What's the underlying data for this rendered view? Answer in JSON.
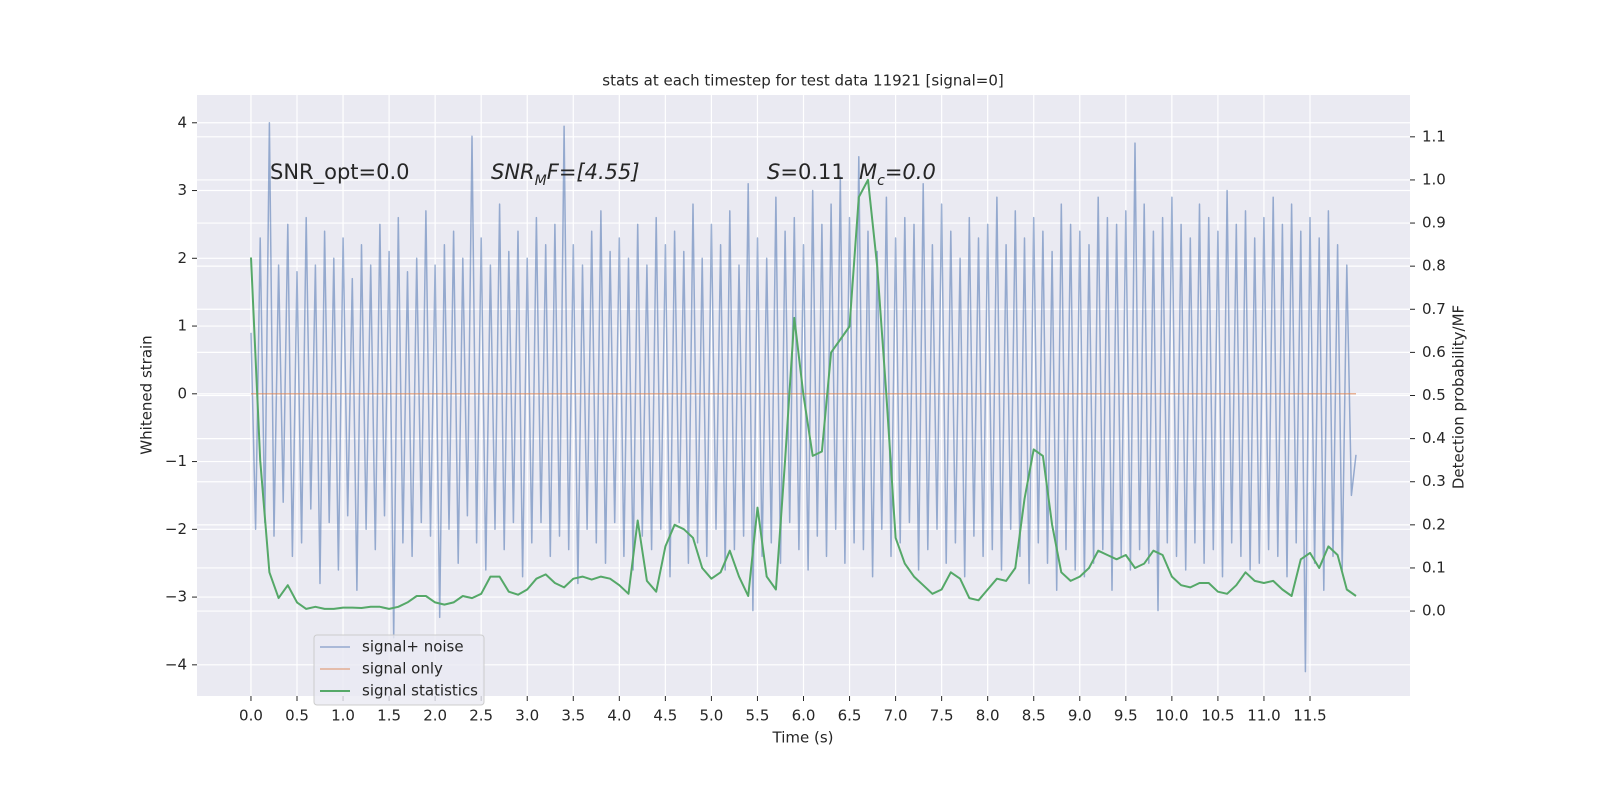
{
  "chart_data": {
    "type": "line",
    "title": "stats at each timestep for test data 11921 [signal=0]",
    "xlabel": "Time (s)",
    "ylabel": "Whitened strain",
    "y2label": "Detection probability/MF",
    "annotations": [
      "SNR_opt=0.0",
      "SNRMF=[4.55]",
      "S=0.11",
      "Mc=0.0"
    ],
    "xlim": [
      -0.586,
      12.586
    ],
    "ylim": [
      -4.46,
      4.41
    ],
    "y2lim": [
      -0.197,
      1.197
    ],
    "xticks": [
      {
        "value": 0,
        "label": "0.0"
      },
      0.5,
      {
        "value": 1,
        "label": "1.0"
      },
      1.5,
      {
        "value": 2,
        "label": "2.0"
      },
      2.5,
      {
        "value": 3,
        "label": "3.0"
      },
      3.5,
      {
        "value": 4,
        "label": "4.0"
      },
      4.5,
      {
        "value": 5,
        "label": "5.0"
      },
      5.5,
      {
        "value": 6,
        "label": "6.0"
      },
      6.5,
      {
        "value": 7,
        "label": "7.0"
      },
      7.5,
      {
        "value": 8,
        "label": "8.0"
      },
      8.5,
      {
        "value": 9,
        "label": "9.0"
      },
      9.5,
      {
        "value": 10,
        "label": "10.0"
      },
      10.5,
      {
        "value": 11,
        "label": "11.0"
      },
      11.5
    ],
    "yticks": [
      {
        "value": -4,
        "label": "−4"
      },
      {
        "value": -3,
        "label": "−3"
      },
      {
        "value": -2,
        "label": "−2"
      },
      {
        "value": -1,
        "label": "−1"
      },
      0,
      1,
      2,
      3,
      4
    ],
    "y2ticks": [
      {
        "value": 0,
        "label": "0.0"
      },
      0.1,
      0.2,
      0.3,
      0.4,
      0.5,
      0.6,
      0.7,
      0.8,
      0.9,
      {
        "value": 1,
        "label": "1.0"
      },
      1.1
    ],
    "grid": true,
    "legend": "lower left",
    "series": [
      {
        "name": "signal+ noise",
        "color": "#4c72b0",
        "x": [
          0,
          0.05,
          0.1,
          0.15,
          0.2,
          0.25,
          0.3,
          0.35,
          0.4,
          0.45,
          0.5,
          0.55,
          0.6,
          0.65,
          0.7,
          0.75,
          0.8,
          0.85,
          0.9,
          0.95,
          1,
          1.05,
          1.1,
          1.15,
          1.2,
          1.25,
          1.3,
          1.35,
          1.4,
          1.45,
          1.5,
          1.55,
          1.6,
          1.65,
          1.7,
          1.75,
          1.8,
          1.85,
          1.9,
          1.95,
          2,
          2.05,
          2.1,
          2.15,
          2.2,
          2.25,
          2.3,
          2.35,
          2.4,
          2.45,
          2.5,
          2.55,
          2.6,
          2.65,
          2.7,
          2.75,
          2.8,
          2.85,
          2.9,
          2.95,
          3,
          3.05,
          3.1,
          3.15,
          3.2,
          3.25,
          3.3,
          3.35,
          3.4,
          3.45,
          3.5,
          3.55,
          3.6,
          3.65,
          3.7,
          3.75,
          3.8,
          3.85,
          3.9,
          3.95,
          4,
          4.05,
          4.1,
          4.15,
          4.2,
          4.25,
          4.3,
          4.35,
          4.4,
          4.45,
          4.5,
          4.55,
          4.6,
          4.65,
          4.7,
          4.75,
          4.8,
          4.85,
          4.9,
          4.95,
          5,
          5.05,
          5.1,
          5.15,
          5.2,
          5.25,
          5.3,
          5.35,
          5.4,
          5.45,
          5.5,
          5.55,
          5.6,
          5.65,
          5.7,
          5.75,
          5.8,
          5.85,
          5.9,
          5.95,
          6,
          6.05,
          6.1,
          6.15,
          6.2,
          6.25,
          6.3,
          6.35,
          6.4,
          6.45,
          6.5,
          6.55,
          6.6,
          6.65,
          6.7,
          6.75,
          6.8,
          6.85,
          6.9,
          6.95,
          7,
          7.05,
          7.1,
          7.15,
          7.2,
          7.25,
          7.3,
          7.35,
          7.4,
          7.45,
          7.5,
          7.55,
          7.6,
          7.65,
          7.7,
          7.75,
          7.8,
          7.85,
          7.9,
          7.95,
          8,
          8.05,
          8.1,
          8.15,
          8.2,
          8.25,
          8.3,
          8.35,
          8.4,
          8.45,
          8.5,
          8.55,
          8.6,
          8.65,
          8.7,
          8.75,
          8.8,
          8.85,
          8.9,
          8.95,
          9,
          9.05,
          9.1,
          9.15,
          9.2,
          9.25,
          9.3,
          9.35,
          9.4,
          9.45,
          9.5,
          9.55,
          9.6,
          9.65,
          9.7,
          9.75,
          9.8,
          9.85,
          9.9,
          9.95,
          10,
          10.05,
          10.1,
          10.15,
          10.2,
          10.25,
          10.3,
          10.35,
          10.4,
          10.45,
          10.5,
          10.55,
          10.6,
          10.65,
          10.7,
          10.75,
          10.8,
          10.85,
          10.9,
          10.95,
          11,
          11.05,
          11.1,
          11.15,
          11.2,
          11.25,
          11.3,
          11.35,
          11.4,
          11.45,
          11.5,
          11.55,
          11.6,
          11.65,
          11.7,
          11.75,
          11.8,
          11.85,
          11.9,
          11.95,
          12
        ],
        "values": [
          0.9,
          -2.0,
          2.3,
          -1.9,
          4.0,
          -2.1,
          1.9,
          -1.6,
          2.5,
          -2.4,
          1.8,
          -2.2,
          2.6,
          -1.7,
          1.9,
          -2.8,
          2.4,
          -1.9,
          2.0,
          -2.6,
          2.3,
          -1.8,
          1.7,
          -2.9,
          2.2,
          -2.0,
          1.9,
          -2.3,
          2.5,
          -1.8,
          2.1,
          -3.6,
          2.6,
          -2.2,
          1.8,
          -2.4,
          2.0,
          -1.9,
          2.7,
          -2.1,
          1.9,
          -3.3,
          2.2,
          -2.0,
          2.4,
          -2.5,
          2.0,
          -1.8,
          3.8,
          -2.2,
          2.3,
          -2.6,
          1.9,
          -2.0,
          2.8,
          -2.3,
          2.1,
          -1.9,
          2.4,
          -2.7,
          2.0,
          -2.2,
          2.6,
          -1.9,
          2.2,
          -2.4,
          2.5,
          -2.1,
          3.95,
          -2.3,
          2.2,
          -2.8,
          1.9,
          -2.0,
          2.4,
          -2.2,
          2.7,
          -2.5,
          2.1,
          -1.9,
          2.3,
          -2.4,
          2.0,
          -2.6,
          2.5,
          -2.1,
          1.9,
          -2.3,
          2.6,
          -2.0,
          2.2,
          -2.7,
          2.4,
          -1.9,
          2.1,
          -2.5,
          2.8,
          -2.2,
          2.0,
          -2.4,
          2.5,
          -2.0,
          2.2,
          -2.6,
          2.7,
          -2.3,
          1.9,
          -2.1,
          3.1,
          -3.2,
          2.3,
          -2.4,
          2.0,
          -2.2,
          2.9,
          -2.5,
          2.4,
          -1.9,
          2.6,
          -2.3,
          2.2,
          -2.6,
          3.0,
          -2.1,
          2.5,
          -2.4,
          2.8,
          -2.0,
          3.2,
          -2.5,
          2.6,
          -2.2,
          3.5,
          -2.3,
          2.4,
          -2.7,
          2.1,
          -2.0,
          2.9,
          -2.4,
          2.3,
          -2.2,
          2.6,
          -1.9,
          2.5,
          -2.6,
          3.1,
          -2.3,
          2.2,
          -2.0,
          2.8,
          -2.5,
          2.4,
          -2.2,
          2.0,
          -2.7,
          2.6,
          -2.1,
          2.3,
          -2.4,
          2.5,
          -2.3,
          2.9,
          -2.6,
          2.2,
          -2.0,
          2.7,
          -2.4,
          2.3,
          -2.8,
          2.6,
          -2.2,
          2.4,
          -2.5,
          2.1,
          -2.9,
          2.8,
          -2.3,
          2.5,
          -2.6,
          2.4,
          -2.7,
          2.2,
          -2.5,
          2.9,
          -2.3,
          2.6,
          -2.9,
          2.5,
          -2.4,
          2.7,
          -2.6,
          3.7,
          -2.3,
          2.8,
          -2.5,
          2.4,
          -3.2,
          2.6,
          -2.2,
          2.9,
          -2.4,
          2.5,
          -2.6,
          2.3,
          -2.2,
          2.8,
          -2.5,
          2.6,
          -2.3,
          2.4,
          -2.7,
          3.0,
          -2.2,
          2.5,
          -2.4,
          2.7,
          -2.6,
          2.3,
          -2.5,
          2.6,
          -2.3,
          2.9,
          -2.4,
          2.5,
          -2.7,
          2.8,
          -2.2,
          2.4,
          -4.1,
          2.6,
          -2.5,
          2.3,
          -2.9,
          2.7,
          -2.4,
          2.2,
          -2.6,
          1.9,
          -1.5,
          -0.9
        ]
      },
      {
        "name": "signal only",
        "color": "#dd8452",
        "x": [
          0,
          12
        ],
        "values": [
          0,
          0
        ]
      },
      {
        "name": "signal statistics",
        "color": "#55a868",
        "axis": "y2",
        "x": [
          0,
          0.1,
          0.2,
          0.3,
          0.4,
          0.5,
          0.6,
          0.7,
          0.8,
          0.9,
          1,
          1.1,
          1.2,
          1.3,
          1.4,
          1.5,
          1.6,
          1.7,
          1.8,
          1.9,
          2,
          2.1,
          2.2,
          2.3,
          2.4,
          2.5,
          2.6,
          2.7,
          2.8,
          2.9,
          3,
          3.1,
          3.2,
          3.3,
          3.4,
          3.5,
          3.6,
          3.7,
          3.8,
          3.9,
          4,
          4.1,
          4.2,
          4.3,
          4.4,
          4.5,
          4.6,
          4.7,
          4.8,
          4.9,
          5,
          5.1,
          5.2,
          5.3,
          5.4,
          5.5,
          5.6,
          5.7,
          5.8,
          5.9,
          6,
          6.1,
          6.2,
          6.3,
          6.4,
          6.5,
          6.6,
          6.7,
          6.8,
          6.9,
          7,
          7.1,
          7.2,
          7.3,
          7.4,
          7.5,
          7.6,
          7.7,
          7.8,
          7.9,
          8,
          8.1,
          8.2,
          8.3,
          8.4,
          8.5,
          8.6,
          8.7,
          8.8,
          8.9,
          9,
          9.1,
          9.2,
          9.3,
          9.4,
          9.5,
          9.6,
          9.7,
          9.8,
          9.9,
          10,
          10.1,
          10.2,
          10.3,
          10.4,
          10.5,
          10.6,
          10.7,
          10.8,
          10.9,
          11,
          11.1,
          11.2,
          11.3,
          11.4,
          11.5,
          11.6,
          11.7,
          11.8,
          11.9,
          12
        ],
        "values": [
          0.82,
          0.35,
          0.09,
          0.03,
          0.06,
          0.02,
          0.005,
          0.01,
          0.005,
          0.005,
          0.008,
          0.008,
          0.007,
          0.01,
          0.01,
          0.005,
          0.01,
          0.02,
          0.035,
          0.035,
          0.02,
          0.015,
          0.02,
          0.035,
          0.03,
          0.04,
          0.08,
          0.08,
          0.045,
          0.038,
          0.05,
          0.075,
          0.085,
          0.065,
          0.055,
          0.075,
          0.08,
          0.073,
          0.08,
          0.075,
          0.06,
          0.04,
          0.21,
          0.07,
          0.045,
          0.15,
          0.2,
          0.19,
          0.17,
          0.1,
          0.075,
          0.09,
          0.14,
          0.08,
          0.035,
          0.24,
          0.08,
          0.05,
          0.35,
          0.68,
          0.5,
          0.36,
          0.37,
          0.6,
          0.63,
          0.66,
          0.96,
          1.0,
          0.8,
          0.5,
          0.17,
          0.11,
          0.08,
          0.06,
          0.04,
          0.05,
          0.09,
          0.075,
          0.03,
          0.025,
          0.05,
          0.075,
          0.07,
          0.1,
          0.26,
          0.375,
          0.36,
          0.2,
          0.09,
          0.07,
          0.08,
          0.1,
          0.14,
          0.13,
          0.12,
          0.13,
          0.1,
          0.11,
          0.14,
          0.13,
          0.08,
          0.06,
          0.055,
          0.065,
          0.065,
          0.045,
          0.04,
          0.06,
          0.09,
          0.07,
          0.065,
          0.07,
          0.05,
          0.035,
          0.12,
          0.135,
          0.1,
          0.15,
          0.13,
          0.05,
          0.035
        ]
      }
    ]
  }
}
